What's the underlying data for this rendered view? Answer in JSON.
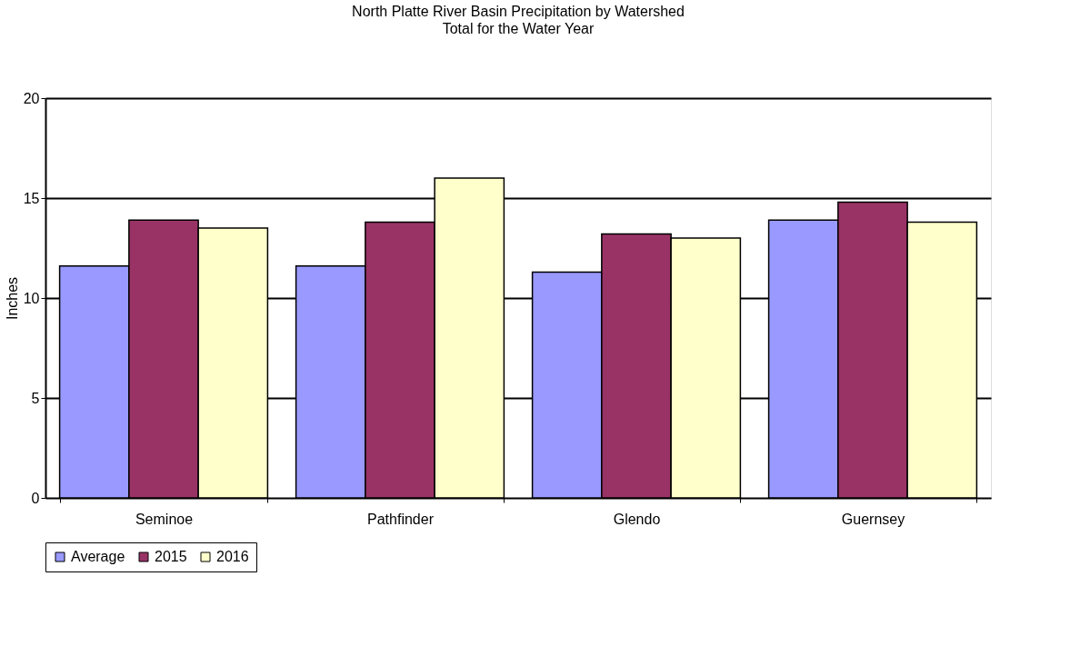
{
  "chart_data": {
    "type": "bar",
    "title": "North Platte River Basin Precipitation by Watershed",
    "subtitle": "Total for the Water Year",
    "ylabel": "Inches",
    "categories": [
      "Seminoe",
      "Pathfinder",
      "Glendo",
      "Guernsey"
    ],
    "series": [
      {
        "name": "Average",
        "color": "#9999ff",
        "values": [
          11.6,
          11.6,
          11.3,
          13.9
        ]
      },
      {
        "name": "2015",
        "color": "#993366",
        "values": [
          13.9,
          13.8,
          13.2,
          14.8
        ]
      },
      {
        "name": "2016",
        "color": "#ffffcc",
        "values": [
          13.5,
          16.0,
          13.0,
          13.8
        ]
      }
    ],
    "ylim": [
      0,
      20
    ],
    "yticks": [
      0,
      5,
      10,
      15,
      20
    ],
    "grid": "y",
    "legend": "bottom"
  }
}
